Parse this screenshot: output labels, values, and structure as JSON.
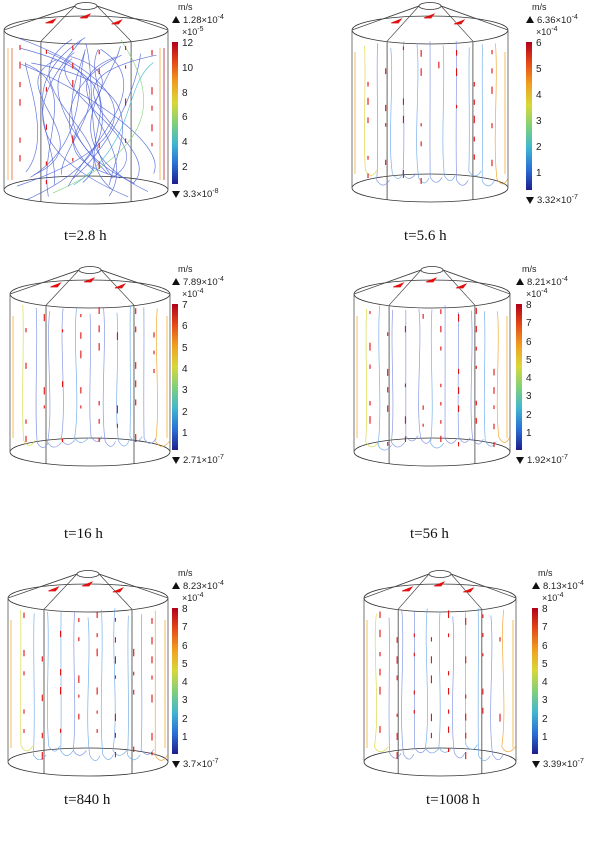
{
  "unit": "m/s",
  "colormap": [
    "#1e1e8c",
    "#2b6fd6",
    "#3fb7d0",
    "#7fd07a",
    "#d8d83a",
    "#f0a020",
    "#e44a18",
    "#b2001a"
  ],
  "arrow_color": "#e01010",
  "panels": [
    {
      "caption": "t=2.8 h",
      "max_label": "1.28×10",
      "max_exp": "-4",
      "multiplier": "×10",
      "multiplier_exp": "-5",
      "min_label": "3.3×10",
      "min_exp": "-8",
      "ticks": [
        "12",
        "10",
        "8",
        "6",
        "4",
        "2"
      ],
      "flow": "vortex"
    },
    {
      "caption": "t=5.6 h",
      "max_label": "6.36×10",
      "max_exp": "-4",
      "multiplier": "×10",
      "multiplier_exp": "-4",
      "min_label": "3.32×10",
      "min_exp": "-7",
      "ticks": [
        "6",
        "5",
        "4",
        "3",
        "2",
        "1"
      ],
      "flow": "vertical"
    },
    {
      "caption": "t=16 h",
      "max_label": "7.89×10",
      "max_exp": "-4",
      "multiplier": "×10",
      "multiplier_exp": "-4",
      "min_label": "2.71×10",
      "min_exp": "-7",
      "ticks": [
        "7",
        "6",
        "5",
        "4",
        "3",
        "2",
        "1"
      ],
      "flow": "vertical"
    },
    {
      "caption": "t=56 h",
      "max_label": "8.21×10",
      "max_exp": "-4",
      "multiplier": "×10",
      "multiplier_exp": "-4",
      "min_label": "1.92×10",
      "min_exp": "-7",
      "ticks": [
        "8",
        "7",
        "6",
        "5",
        "4",
        "3",
        "2",
        "1"
      ],
      "flow": "vertical"
    },
    {
      "caption": "t=840 h",
      "max_label": "8.23×10",
      "max_exp": "-4",
      "multiplier": "×10",
      "multiplier_exp": "-4",
      "min_label": "3.7×10",
      "min_exp": "-7",
      "ticks": [
        "8",
        "7",
        "6",
        "5",
        "4",
        "3",
        "2",
        "1"
      ],
      "flow": "vertical"
    },
    {
      "caption": "t=1008 h",
      "max_label": "8.13×10",
      "max_exp": "-4",
      "multiplier": "×10",
      "multiplier_exp": "-4",
      "min_label": "3.39×10",
      "min_exp": "-7",
      "ticks": [
        "8",
        "7",
        "6",
        "5",
        "4",
        "3",
        "2",
        "1"
      ],
      "flow": "vertical"
    }
  ]
}
